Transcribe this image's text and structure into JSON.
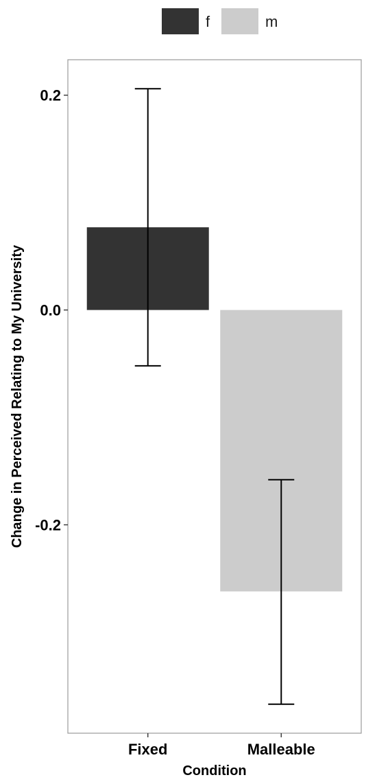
{
  "chart_data": {
    "type": "bar",
    "title": "",
    "xlabel": "Condition",
    "ylabel": "Change in Perceived Relating to My University",
    "categories": [
      "Fixed",
      "Malleable"
    ],
    "series": [
      {
        "name": "f",
        "color": "#333333",
        "bars": [
          {
            "category": "Fixed",
            "value": 0.077,
            "error_low": -0.052,
            "error_high": 0.206
          }
        ]
      },
      {
        "name": "m",
        "color": "#cccccc",
        "bars": [
          {
            "category": "Malleable",
            "value": -0.262,
            "error_low": -0.367,
            "error_high": -0.158
          }
        ]
      }
    ],
    "y_ticks": [
      {
        "value": -0.2,
        "label": "-0.2"
      },
      {
        "value": 0.0,
        "label": "0.0"
      },
      {
        "value": 0.2,
        "label": "0.2"
      }
    ],
    "ylim": [
      -0.394,
      0.233
    ],
    "legend_position": "top",
    "grid": false
  }
}
